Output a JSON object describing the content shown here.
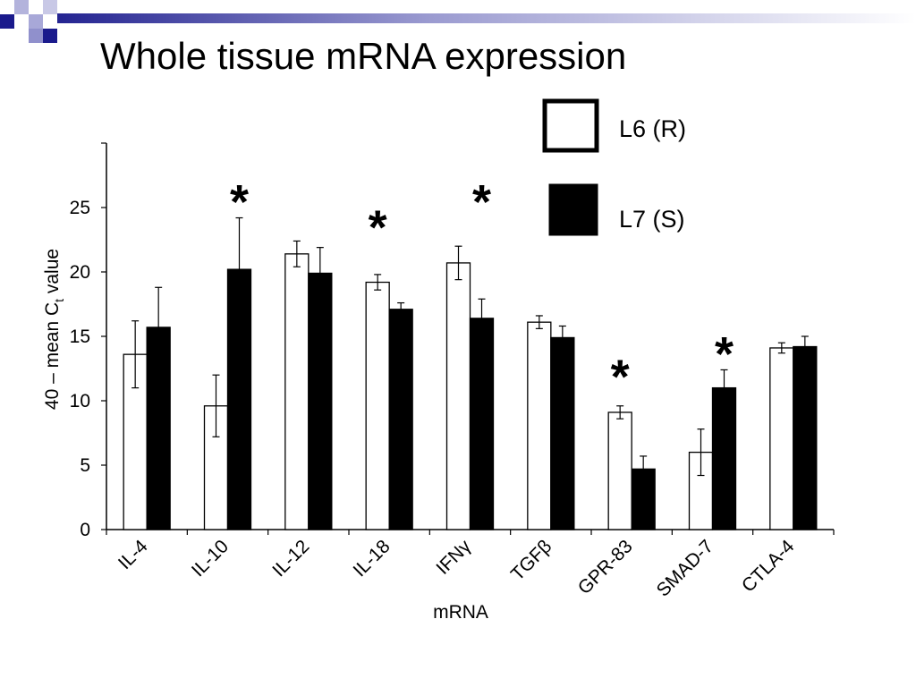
{
  "slide": {
    "title": "Whole tissue mRNA expression"
  },
  "chart_data": {
    "type": "bar",
    "title": "",
    "xlabel": "mRNA",
    "ylabel_main": "40 – mean C",
    "ylabel_sub": "t",
    "ylabel_tail": " value",
    "ylim": [
      0,
      30
    ],
    "yticks": [
      0,
      5,
      10,
      15,
      20,
      25
    ],
    "categories": [
      "IL-4",
      "IL-10",
      "IL-12",
      "IL-18",
      "IFNγ",
      "TGFβ",
      "GPR-83",
      "SMAD-7",
      "CTLA-4"
    ],
    "series": [
      {
        "name": "L6 (R)",
        "fill": "#ffffff",
        "values": [
          13.6,
          9.6,
          21.4,
          19.2,
          20.7,
          16.1,
          9.1,
          6.0,
          14.1
        ],
        "errors": [
          2.6,
          2.4,
          1.0,
          0.6,
          1.3,
          0.5,
          0.5,
          1.8,
          0.4
        ]
      },
      {
        "name": "L7 (S)",
        "fill": "#000000",
        "values": [
          15.7,
          20.2,
          19.9,
          17.1,
          16.4,
          14.9,
          4.7,
          11.0,
          14.2
        ],
        "errors": [
          3.1,
          4.0,
          2.0,
          0.5,
          1.5,
          0.9,
          1.0,
          1.4,
          0.8
        ]
      }
    ],
    "significance": [
      {
        "category_index": 1,
        "series_index": 1,
        "symbol": "*",
        "y": 26.4
      },
      {
        "category_index": 3,
        "series_index": 0,
        "symbol": "*",
        "y": 24.4
      },
      {
        "category_index": 4,
        "series_index": 1,
        "symbol": "*",
        "y": 26.4
      },
      {
        "category_index": 6,
        "series_index": 0,
        "symbol": "*",
        "y": 12.8
      },
      {
        "category_index": 7,
        "series_index": 1,
        "symbol": "*",
        "y": 14.6
      }
    ],
    "legend_position": "top-right"
  }
}
